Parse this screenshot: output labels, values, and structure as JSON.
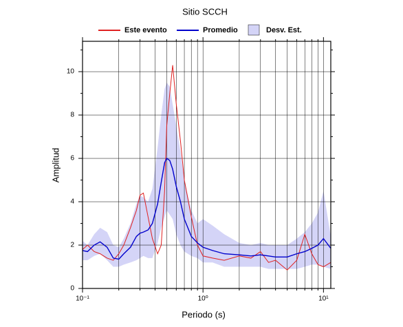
{
  "chart_data": {
    "type": "line",
    "title": "Sitio SCCH",
    "x_label": "Periodo (s)",
    "y_label": "Amplitud",
    "x_scale": "log",
    "grid": true,
    "xlim": [
      0.1,
      11.5
    ],
    "xticks": [
      {
        "value": 0.1,
        "label": "10⁻¹"
      },
      {
        "value": 1,
        "label": "10⁰"
      },
      {
        "value": 10,
        "label": "10¹"
      }
    ],
    "ylim": [
      0,
      11.4
    ],
    "yticks": [
      0,
      2,
      4,
      6,
      8,
      10
    ],
    "x": [
      0.1,
      0.11,
      0.125,
      0.14,
      0.16,
      0.18,
      0.2,
      0.22,
      0.25,
      0.28,
      0.3,
      0.32,
      0.35,
      0.38,
      0.42,
      0.45,
      0.48,
      0.5,
      0.53,
      0.56,
      0.6,
      0.65,
      0.7,
      0.8,
      0.9,
      1.0,
      1.2,
      1.5,
      2,
      2.5,
      3,
      3.5,
      4,
      5,
      6,
      7,
      8,
      9,
      10,
      11.5
    ],
    "band": {
      "name": "Desv. Est.",
      "color": "#d4d4f7",
      "lower": [
        1.3,
        1.3,
        1.5,
        1.6,
        1.3,
        1.0,
        1.0,
        1.1,
        1.2,
        1.3,
        1.4,
        1.5,
        1.4,
        1.4,
        2.1,
        2.8,
        3.3,
        3.6,
        3.4,
        3.2,
        2.5,
        2.0,
        1.7,
        1.5,
        1.4,
        1.2,
        1.2,
        1.0,
        1.0,
        1.0,
        1.0,
        0.9,
        0.9,
        0.9,
        0.9,
        1.0,
        1.1,
        1.1,
        1.0,
        0.9
      ],
      "upper": [
        2.2,
        2.0,
        2.5,
        2.8,
        2.6,
        2.0,
        1.9,
        2.3,
        3.0,
        3.9,
        4.3,
        4.2,
        4.0,
        4.6,
        6.5,
        8.0,
        9.2,
        9.5,
        9.3,
        8.5,
        7.5,
        6.3,
        5.0,
        3.6,
        3.0,
        3.2,
        2.9,
        2.5,
        2.1,
        2.0,
        2.1,
        2.0,
        2.0,
        2.0,
        2.3,
        2.6,
        3.0,
        3.5,
        4.5,
        2.4
      ]
    },
    "series": [
      {
        "name": "Este evento",
        "color": "#e02020",
        "values": [
          1.8,
          2.0,
          1.7,
          1.6,
          1.4,
          1.3,
          1.6,
          2.0,
          2.8,
          3.6,
          4.3,
          4.4,
          3.3,
          2.3,
          1.6,
          2.0,
          4.5,
          7.5,
          9.0,
          10.3,
          8.5,
          6.8,
          5.0,
          3.3,
          2.0,
          1.5,
          1.4,
          1.3,
          1.5,
          1.4,
          1.7,
          1.2,
          1.3,
          0.85,
          1.3,
          2.5,
          1.6,
          1.1,
          1.0,
          1.2
        ]
      },
      {
        "name": "Promedio",
        "color": "#0000cc",
        "values": [
          1.75,
          1.7,
          2.0,
          2.15,
          1.9,
          1.4,
          1.35,
          1.6,
          1.9,
          2.4,
          2.55,
          2.6,
          2.7,
          3.0,
          3.9,
          4.9,
          5.8,
          6.0,
          5.9,
          5.5,
          4.7,
          4.0,
          3.2,
          2.4,
          2.1,
          1.9,
          1.75,
          1.6,
          1.55,
          1.5,
          1.55,
          1.5,
          1.45,
          1.45,
          1.6,
          1.7,
          1.85,
          2.0,
          2.3,
          1.85
        ]
      }
    ]
  }
}
